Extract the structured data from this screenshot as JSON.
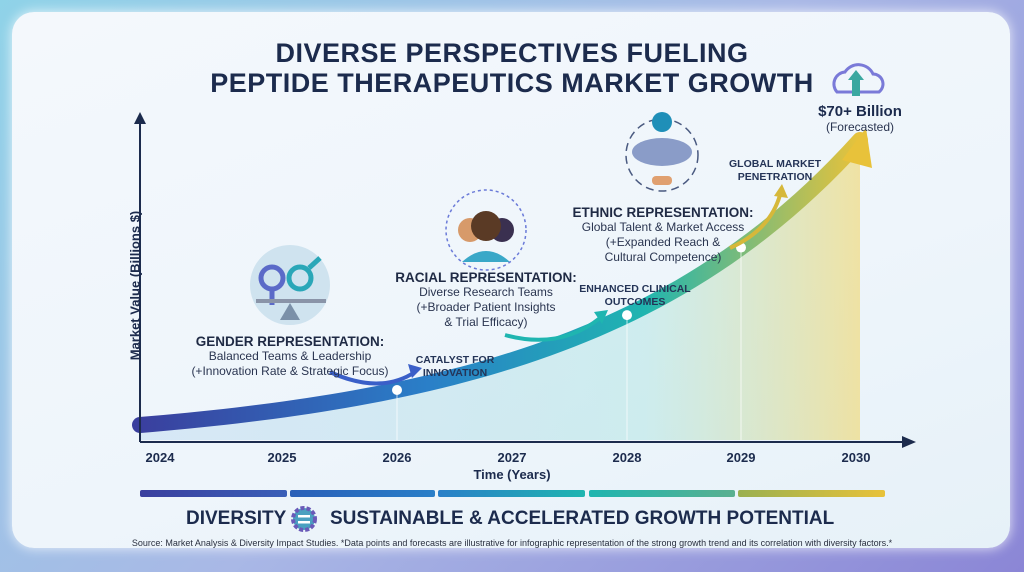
{
  "title": {
    "line1": "DIVERSE PERSPECTIVES FUELING",
    "line2": "PEPTIDE THERAPEUTICS MARKET GROWTH"
  },
  "forecast": {
    "value": "$70+ Billion",
    "note": "(Forecasted)",
    "icon": "cloud-upload-icon"
  },
  "blocks": [
    {
      "heading": "GENDER REPRESENTATION:",
      "line1": "Balanced Teams & Leadership",
      "line2": "(+Innovation Rate & Strategic Focus)",
      "icon": "gender-balance-icon"
    },
    {
      "heading": "RACIAL REPRESENTATION:",
      "line1": "Diverse Research Teams",
      "line2": "(+Broader Patient Insights",
      "line3": "& Trial Efficacy)",
      "icon": "diverse-people-icon"
    },
    {
      "heading": "ETHNIC REPRESENTATION:",
      "line1": "Global Talent & Market Access",
      "line2": "(+Expanded Reach &",
      "line3": "Cultural Competence)",
      "icon": "globe-map-handshake-icon"
    }
  ],
  "annotations": [
    {
      "line1": "CATALYST FOR",
      "line2": "INNOVATION"
    },
    {
      "line1": "ENHANCED CLINICAL",
      "line2": "OUTCOMES"
    },
    {
      "line1": "GLOBAL MARKET",
      "line2": "PENETRATION"
    }
  ],
  "chart_data": {
    "type": "area",
    "xlabel": "Time (Years)",
    "ylabel": "Market Value (Billions $)",
    "categories": [
      "2024",
      "2025",
      "2026",
      "2027",
      "2028",
      "2029",
      "2030"
    ],
    "highlighted_points": [
      "2026",
      "2028",
      "2029"
    ],
    "end_label": "$70+ Billion (Forecasted)",
    "trend": "exponential growth",
    "grid": false,
    "colors": [
      "#3a3f9e",
      "#2a7fc8",
      "#1fb5b0",
      "#e8c23a"
    ]
  },
  "footer": {
    "left": "DIVERSITY",
    "right": "SUSTAINABLE & ACCELERATED GROWTH POTENTIAL",
    "icon": "gear-equals-icon",
    "source": "Source: Market Analysis & Diversity Impact Studies. *Data points and forecasts are illustrative for infographic representation of the strong growth trend and its correlation with diversity factors.*"
  }
}
